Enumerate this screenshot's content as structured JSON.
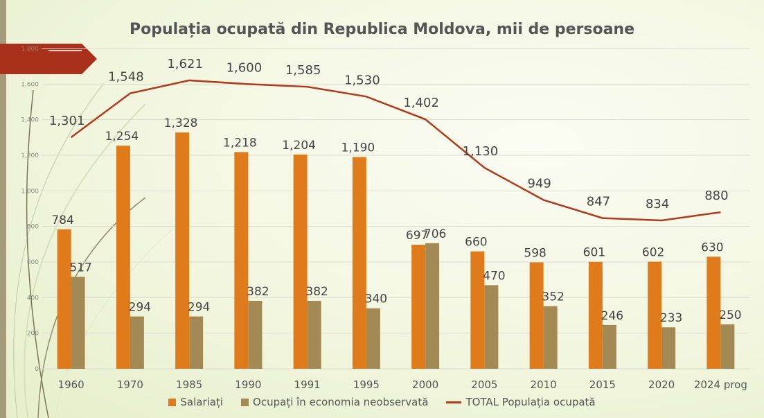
{
  "chart_data": {
    "type": "bar",
    "title": "Populația ocupată din Republica Moldova, mii de persoane",
    "categories": [
      "1960",
      "1970",
      "1985",
      "1990",
      "1991",
      "1995",
      "2000",
      "2005",
      "2010",
      "2015",
      "2020",
      "2024 prog"
    ],
    "y_ticks": [
      "0",
      "200",
      "400",
      "600",
      "800",
      "1,000",
      "1,200",
      "1,400",
      "1,600",
      "1,800"
    ],
    "ylim": [
      0,
      1800
    ],
    "grid": true,
    "legend_position": "bottom",
    "series": [
      {
        "name": "Salariați",
        "kind": "bar",
        "color": "#e07b1c",
        "values": [
          784,
          1254,
          1328,
          1218,
          1204,
          1190,
          697,
          660,
          598,
          601,
          602,
          630
        ],
        "labels": [
          "784",
          "1,254",
          "1,328",
          "1,218",
          "1,204",
          "1,190",
          "697",
          "660",
          "598",
          "601",
          "602",
          "630"
        ]
      },
      {
        "name": "Ocupați în economia neobservată",
        "kind": "bar",
        "color": "#a38a55",
        "values": [
          517,
          294,
          294,
          382,
          382,
          340,
          706,
          470,
          352,
          246,
          233,
          250
        ],
        "labels": [
          "517",
          "294",
          "294",
          "382",
          "382",
          "340",
          "706",
          "470",
          "352",
          "246",
          "233",
          "250"
        ]
      },
      {
        "name": "TOTAL Populația ocupată",
        "kind": "line",
        "color": "#b03a1c",
        "values": [
          1301,
          1548,
          1621,
          1600,
          1585,
          1530,
          1402,
          1130,
          949,
          847,
          834,
          880
        ],
        "labels": [
          "1,301",
          "1,548",
          "1,621",
          "1,600",
          "1,585",
          "1,530",
          "1,402",
          "1,130",
          "949",
          "847",
          "834",
          "880"
        ]
      }
    ]
  }
}
